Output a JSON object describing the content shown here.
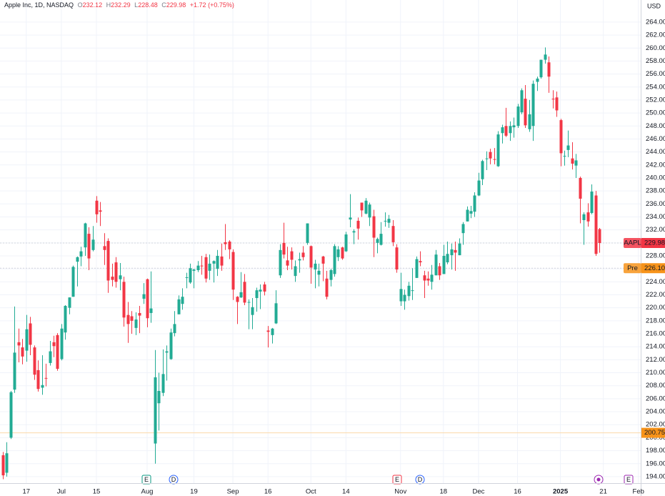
{
  "chart_data": {
    "type": "candlestick",
    "header": {
      "title": "Apple Inc, 1D, NASDAQ",
      "open_label": "O",
      "open": 232.12,
      "high_label": "H",
      "high": 232.29,
      "low_label": "L",
      "low": 228.48,
      "close_label": "C",
      "close": 229.98,
      "change": "+1.72",
      "change_pct": "(+0.75%)"
    },
    "currency": "USD",
    "up_color": "#22ab94",
    "down_color": "#f23645",
    "grid": true,
    "categories": [
      null,
      null,
      null,
      null,
      null,
      null,
      "17",
      null,
      null,
      null,
      null,
      null,
      null,
      null,
      null,
      "Jul",
      null,
      null,
      null,
      null,
      null,
      null,
      null,
      null,
      "15",
      null,
      null,
      null,
      null,
      null,
      null,
      null,
      null,
      null,
      null,
      null,
      null,
      "Aug",
      null,
      null,
      null,
      null,
      null,
      null,
      null,
      null,
      null,
      null,
      null,
      "19",
      null,
      null,
      null,
      null,
      null,
      null,
      null,
      null,
      null,
      "Sep",
      null,
      null,
      null,
      null,
      null,
      null,
      null,
      null,
      "16",
      null,
      null,
      null,
      null,
      null,
      null,
      null,
      null,
      null,
      null,
      "Oct",
      null,
      null,
      null,
      null,
      null,
      null,
      null,
      null,
      "14",
      null,
      null,
      null,
      null,
      null,
      null,
      null,
      null,
      null,
      null,
      null,
      null,
      null,
      "Nov",
      null,
      null,
      null,
      null,
      null,
      null,
      null,
      null,
      null,
      null,
      "18",
      null,
      null,
      null,
      null,
      null,
      null,
      null,
      null,
      "Dec",
      null,
      null,
      null,
      null,
      null,
      null,
      null,
      null,
      null,
      "16",
      null,
      null,
      null,
      null,
      null,
      null,
      null,
      null,
      null,
      null,
      "2025",
      null,
      null,
      null,
      null,
      null,
      null,
      null,
      null,
      null,
      null,
      "21",
      null,
      null,
      null,
      null,
      null,
      null,
      null,
      null,
      "Feb"
    ],
    "ohlc": [
      [
        197.3,
        197.8,
        193.6,
        194.2
      ],
      [
        194.6,
        199.3,
        194.0,
        197.6
      ],
      [
        200.0,
        207.2,
        199.8,
        207.0
      ],
      [
        207.4,
        220.2,
        206.9,
        213.1
      ],
      [
        214.7,
        216.8,
        211.6,
        214.2
      ],
      [
        213.9,
        215.2,
        211.3,
        212.5
      ],
      [
        213.4,
        218.9,
        211.7,
        216.7
      ],
      [
        217.6,
        218.6,
        212.7,
        214.3
      ],
      [
        213.9,
        214.2,
        208.9,
        209.7
      ],
      [
        210.4,
        211.9,
        207.1,
        207.5
      ],
      [
        207.7,
        212.7,
        206.6,
        208.1
      ],
      [
        209.2,
        211.4,
        207.9,
        209.1
      ],
      [
        211.5,
        214.9,
        211.1,
        213.3
      ],
      [
        214.7,
        215.7,
        212.4,
        214.1
      ],
      [
        215.8,
        216.1,
        210.3,
        210.6
      ],
      [
        212.1,
        217.5,
        211.9,
        216.8
      ],
      [
        216.2,
        220.4,
        215.1,
        220.3
      ],
      [
        220.0,
        221.6,
        219.0,
        221.6
      ],
      [
        221.7,
        226.5,
        221.7,
        226.3
      ],
      [
        227.1,
        227.9,
        223.3,
        227.8
      ],
      [
        227.9,
        229.4,
        226.4,
        228.7
      ],
      [
        229.3,
        233.1,
        228.0,
        233.0
      ],
      [
        231.4,
        232.4,
        225.8,
        227.6
      ],
      [
        228.9,
        232.6,
        228.7,
        230.5
      ],
      [
        236.5,
        237.2,
        233.1,
        234.4
      ],
      [
        235.0,
        236.3,
        232.6,
        234.8
      ],
      [
        229.5,
        231.5,
        226.6,
        228.9
      ],
      [
        230.3,
        230.7,
        222.3,
        224.2
      ],
      [
        224.8,
        226.8,
        223.3,
        224.3
      ],
      [
        227.0,
        227.8,
        223.1,
        224.0
      ],
      [
        224.4,
        226.9,
        222.7,
        225.0
      ],
      [
        224.0,
        224.8,
        217.1,
        218.5
      ],
      [
        218.9,
        220.9,
        214.6,
        217.5
      ],
      [
        218.7,
        219.5,
        216.0,
        218.0
      ],
      [
        216.9,
        219.3,
        215.8,
        218.2
      ],
      [
        219.2,
        220.3,
        216.1,
        218.8
      ],
      [
        221.4,
        223.8,
        220.6,
        222.1
      ],
      [
        224.4,
        224.5,
        217.0,
        218.4
      ],
      [
        219.2,
        225.6,
        217.7,
        219.9
      ],
      [
        199.1,
        213.5,
        196.0,
        209.3
      ],
      [
        205.3,
        210.0,
        201.1,
        207.2
      ],
      [
        206.9,
        213.6,
        206.4,
        209.8
      ],
      [
        213.1,
        214.2,
        208.8,
        213.3
      ],
      [
        212.1,
        216.8,
        212.0,
        216.2
      ],
      [
        216.1,
        219.5,
        215.6,
        217.5
      ],
      [
        219.0,
        221.9,
        219.0,
        221.3
      ],
      [
        220.6,
        223.0,
        219.7,
        221.7
      ],
      [
        224.6,
        225.4,
        223.0,
        224.7
      ],
      [
        223.9,
        226.8,
        223.7,
        226.1
      ],
      [
        225.7,
        226.0,
        223.0,
        225.9
      ],
      [
        225.8,
        227.2,
        225.5,
        226.5
      ],
      [
        226.5,
        228.0,
        225.1,
        226.4
      ],
      [
        227.8,
        228.3,
        223.9,
        224.5
      ],
      [
        225.7,
        228.2,
        224.3,
        226.8
      ],
      [
        226.8,
        227.3,
        223.9,
        227.2
      ],
      [
        226.0,
        228.9,
        224.9,
        228.0
      ],
      [
        227.9,
        229.9,
        225.7,
        226.5
      ],
      [
        230.1,
        232.9,
        228.9,
        229.8
      ],
      [
        230.2,
        230.4,
        227.5,
        229.0
      ],
      [
        228.6,
        229.0,
        221.2,
        222.8
      ],
      [
        221.7,
        221.8,
        217.5,
        220.9
      ],
      [
        221.6,
        225.5,
        221.5,
        222.4
      ],
      [
        224.0,
        225.2,
        220.4,
        220.8
      ],
      [
        220.8,
        221.3,
        216.7,
        220.9
      ],
      [
        218.9,
        221.5,
        216.7,
        220.1
      ],
      [
        221.5,
        223.1,
        219.4,
        222.7
      ],
      [
        222.5,
        223.6,
        219.8,
        222.8
      ],
      [
        223.6,
        224.0,
        221.9,
        222.5
      ],
      [
        216.5,
        217.2,
        213.9,
        216.3
      ],
      [
        215.8,
        216.9,
        214.5,
        216.8
      ],
      [
        217.6,
        222.7,
        217.5,
        220.7
      ],
      [
        225.0,
        229.8,
        224.6,
        228.9
      ],
      [
        230.0,
        233.1,
        227.6,
        228.2
      ],
      [
        227.3,
        229.4,
        225.8,
        226.5
      ],
      [
        228.7,
        229.3,
        225.9,
        227.4
      ],
      [
        224.9,
        227.3,
        224.0,
        226.4
      ],
      [
        227.3,
        228.5,
        225.4,
        227.5
      ],
      [
        228.5,
        229.5,
        227.3,
        227.8
      ],
      [
        230.0,
        233.0,
        229.7,
        233.0
      ],
      [
        229.5,
        229.6,
        223.7,
        226.2
      ],
      [
        225.9,
        227.4,
        223.0,
        226.8
      ],
      [
        225.1,
        226.8,
        223.3,
        225.7
      ],
      [
        227.9,
        228.0,
        224.1,
        226.8
      ],
      [
        224.5,
        225.7,
        221.3,
        221.7
      ],
      [
        224.3,
        226.0,
        223.3,
        225.8
      ],
      [
        225.2,
        229.8,
        224.8,
        229.5
      ],
      [
        227.8,
        229.5,
        227.2,
        229.0
      ],
      [
        229.3,
        229.4,
        227.4,
        227.6
      ],
      [
        228.7,
        231.7,
        228.6,
        231.3
      ],
      [
        233.6,
        237.5,
        232.4,
        233.9
      ],
      [
        231.6,
        232.1,
        229.8,
        231.8
      ],
      [
        233.4,
        233.9,
        230.5,
        232.2
      ],
      [
        236.2,
        236.2,
        234.0,
        235.0
      ],
      [
        234.5,
        236.9,
        234.4,
        236.5
      ],
      [
        233.9,
        236.2,
        232.6,
        235.9
      ],
      [
        234.1,
        235.1,
        227.8,
        230.8
      ],
      [
        230.0,
        230.8,
        228.4,
        230.6
      ],
      [
        229.7,
        233.2,
        229.6,
        231.4
      ],
      [
        233.3,
        234.7,
        232.5,
        233.4
      ],
      [
        233.1,
        234.3,
        232.3,
        233.7
      ],
      [
        232.6,
        233.5,
        229.5,
        230.1
      ],
      [
        229.3,
        229.8,
        225.4,
        225.9
      ],
      [
        221.0,
        225.4,
        220.3,
        222.9
      ],
      [
        221.0,
        222.8,
        219.7,
        222.0
      ],
      [
        221.8,
        224.0,
        221.1,
        223.4
      ],
      [
        222.6,
        226.1,
        221.2,
        222.7
      ],
      [
        224.6,
        227.9,
        224.6,
        227.5
      ],
      [
        227.2,
        228.7,
        226.4,
        227.0
      ],
      [
        225.0,
        225.7,
        221.5,
        224.2
      ],
      [
        224.5,
        225.6,
        223.4,
        224.2
      ],
      [
        224.0,
        226.6,
        222.8,
        225.1
      ],
      [
        225.0,
        228.9,
        225.0,
        228.2
      ],
      [
        226.4,
        226.9,
        224.3,
        225.0
      ],
      [
        225.2,
        229.7,
        225.2,
        228.0
      ],
      [
        227.0,
        230.2,
        226.7,
        228.3
      ],
      [
        228.1,
        229.9,
        225.9,
        229.0
      ],
      [
        228.9,
        230.2,
        225.7,
        228.5
      ],
      [
        228.1,
        230.7,
        228.1,
        229.9
      ],
      [
        231.5,
        233.2,
        229.7,
        232.9
      ],
      [
        233.3,
        235.6,
        233.3,
        235.1
      ],
      [
        234.5,
        235.7,
        233.8,
        234.9
      ],
      [
        234.8,
        237.8,
        234.0,
        237.3
      ],
      [
        237.3,
        240.8,
        237.2,
        239.6
      ],
      [
        239.8,
        242.8,
        238.9,
        242.6
      ],
      [
        242.9,
        244.1,
        241.2,
        243.0
      ],
      [
        244.0,
        244.5,
        242.1,
        243.0
      ],
      [
        242.9,
        244.6,
        242.1,
        242.8
      ],
      [
        241.8,
        247.2,
        241.7,
        246.7
      ],
      [
        246.9,
        248.2,
        245.3,
        247.8
      ],
      [
        248.0,
        250.8,
        246.3,
        246.5
      ],
      [
        246.9,
        248.7,
        245.7,
        248.0
      ],
      [
        247.8,
        249.3,
        246.2,
        248.1
      ],
      [
        248.0,
        251.4,
        247.7,
        251.0
      ],
      [
        250.1,
        253.8,
        249.8,
        253.5
      ],
      [
        252.2,
        254.3,
        247.7,
        248.1
      ],
      [
        247.5,
        252.0,
        247.1,
        249.8
      ],
      [
        248.0,
        255.0,
        245.7,
        254.5
      ],
      [
        254.8,
        255.6,
        253.4,
        255.3
      ],
      [
        255.5,
        258.2,
        255.3,
        258.2
      ],
      [
        258.2,
        260.1,
        257.6,
        259.0
      ],
      [
        257.8,
        258.7,
        253.1,
        255.6
      ],
      [
        252.2,
        253.5,
        250.7,
        252.1
      ],
      [
        252.4,
        253.3,
        249.4,
        250.4
      ],
      [
        248.9,
        249.1,
        241.8,
        243.8
      ],
      [
        243.4,
        244.2,
        241.9,
        243.4
      ],
      [
        244.3,
        247.3,
        243.2,
        245.0
      ],
      [
        243.0,
        245.5,
        241.3,
        242.2
      ],
      [
        241.9,
        243.7,
        240.0,
        242.7
      ],
      [
        240.0,
        240.2,
        233.0,
        236.8
      ],
      [
        233.5,
        234.7,
        229.7,
        234.4
      ],
      [
        234.7,
        236.1,
        232.5,
        233.3
      ],
      [
        234.6,
        239.0,
        234.4,
        237.9
      ],
      [
        237.3,
        238.0,
        228.0,
        228.3
      ],
      [
        232.12,
        232.29,
        228.48,
        229.98
      ],
      null,
      null,
      null,
      null,
      null,
      null,
      null,
      null,
      null,
      null
    ],
    "xlim": [
      -0.734,
      163.6
    ],
    "ylim": [
      193.0,
      267.4
    ],
    "yticks": [
      {
        "value": 194,
        "label": "194.00"
      },
      {
        "value": 196,
        "label": "196.00"
      },
      {
        "value": 198,
        "label": "198.00"
      },
      {
        "value": 200,
        "label": "200.00"
      },
      {
        "value": 202,
        "label": "202.00"
      },
      {
        "value": 204,
        "label": "204.00"
      },
      {
        "value": 206,
        "label": "206.00"
      },
      {
        "value": 208,
        "label": "208.00"
      },
      {
        "value": 210,
        "label": "210.00"
      },
      {
        "value": 212,
        "label": "212.00"
      },
      {
        "value": 214,
        "label": "214.00"
      },
      {
        "value": 216,
        "label": "216.00"
      },
      {
        "value": 218,
        "label": "218.00"
      },
      {
        "value": 220,
        "label": "220.00"
      },
      {
        "value": 222,
        "label": "222.00"
      },
      {
        "value": 224,
        "label": "224.00"
      },
      {
        "value": 226,
        "label": "226.00"
      },
      {
        "value": 228,
        "label": "228.00"
      },
      {
        "value": 230,
        "label": "230.00"
      },
      {
        "value": 232,
        "label": "232.00"
      },
      {
        "value": 234,
        "label": "234.00"
      },
      {
        "value": 236,
        "label": "236.00"
      },
      {
        "value": 238,
        "label": "238.00"
      },
      {
        "value": 240,
        "label": "240.00"
      },
      {
        "value": 242,
        "label": "242.00"
      },
      {
        "value": 244,
        "label": "244.00"
      },
      {
        "value": 246,
        "label": "246.00"
      },
      {
        "value": 248,
        "label": "248.00"
      },
      {
        "value": 250,
        "label": "250.00"
      },
      {
        "value": 252,
        "label": "252.00"
      },
      {
        "value": 254,
        "label": "254.00"
      },
      {
        "value": 256,
        "label": "256.00"
      },
      {
        "value": 258,
        "label": "258.00"
      },
      {
        "value": 260,
        "label": "260.00"
      },
      {
        "value": 262,
        "label": "262.00"
      },
      {
        "value": 264,
        "label": "264.00"
      }
    ],
    "price_lines": [
      {
        "label": "AAPL",
        "value": 229.98,
        "color": "#f23645",
        "line_color": "#d1d4dc"
      },
      {
        "label": "Pre",
        "value": 226.1,
        "value_label": "226.10",
        "color": "#f7931a",
        "line_color": "#d1d4dc"
      },
      {
        "value": 200.75,
        "color": "#f7931a",
        "line_color": "#fbd9a8"
      }
    ],
    "events": [
      {
        "label": "E",
        "color": "#089981"
      },
      {
        "label": "D",
        "color": "#2962ff"
      },
      {
        "label": "E",
        "color": "#f23645"
      },
      {
        "label": "D",
        "color": "#2962ff"
      },
      {
        "label": "E",
        "color": "#9c27b0"
      }
    ]
  }
}
